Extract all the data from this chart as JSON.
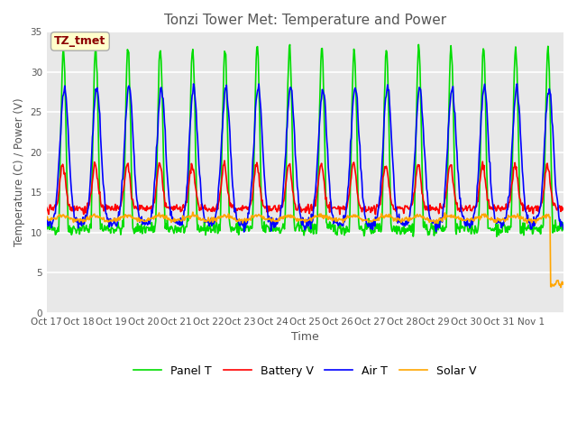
{
  "title": "Tonzi Tower Met: Temperature and Power",
  "xlabel": "Time",
  "ylabel": "Temperature (C) / Power (V)",
  "ylim": [
    0,
    35
  ],
  "yticks": [
    0,
    5,
    10,
    15,
    20,
    25,
    30,
    35
  ],
  "annotation_text": "TZ_tmet",
  "annotation_color": "#8B0000",
  "annotation_bg": "#FFFFCC",
  "x_tick_labels": [
    "Oct 17",
    "Oct 18",
    "Oct 19",
    "Oct 20",
    "Oct 21",
    "Oct 22",
    "Oct 23",
    "Oct 24",
    "Oct 25",
    "Oct 26",
    "Oct 27",
    "Oct 28",
    "Oct 29",
    "Oct 30",
    "Oct 31",
    "Nov 1"
  ],
  "colors": {
    "panel_t": "#00DD00",
    "battery_v": "#FF0000",
    "air_t": "#0000FF",
    "solar_v": "#FFA500"
  },
  "legend_labels": [
    "Panel T",
    "Battery V",
    "Air T",
    "Solar V"
  ],
  "bg_color": "#FFFFFF",
  "plot_bg_color": "#E8E8E8",
  "grid_color": "#FFFFFF",
  "line_width": 1.2,
  "n_days": 16
}
